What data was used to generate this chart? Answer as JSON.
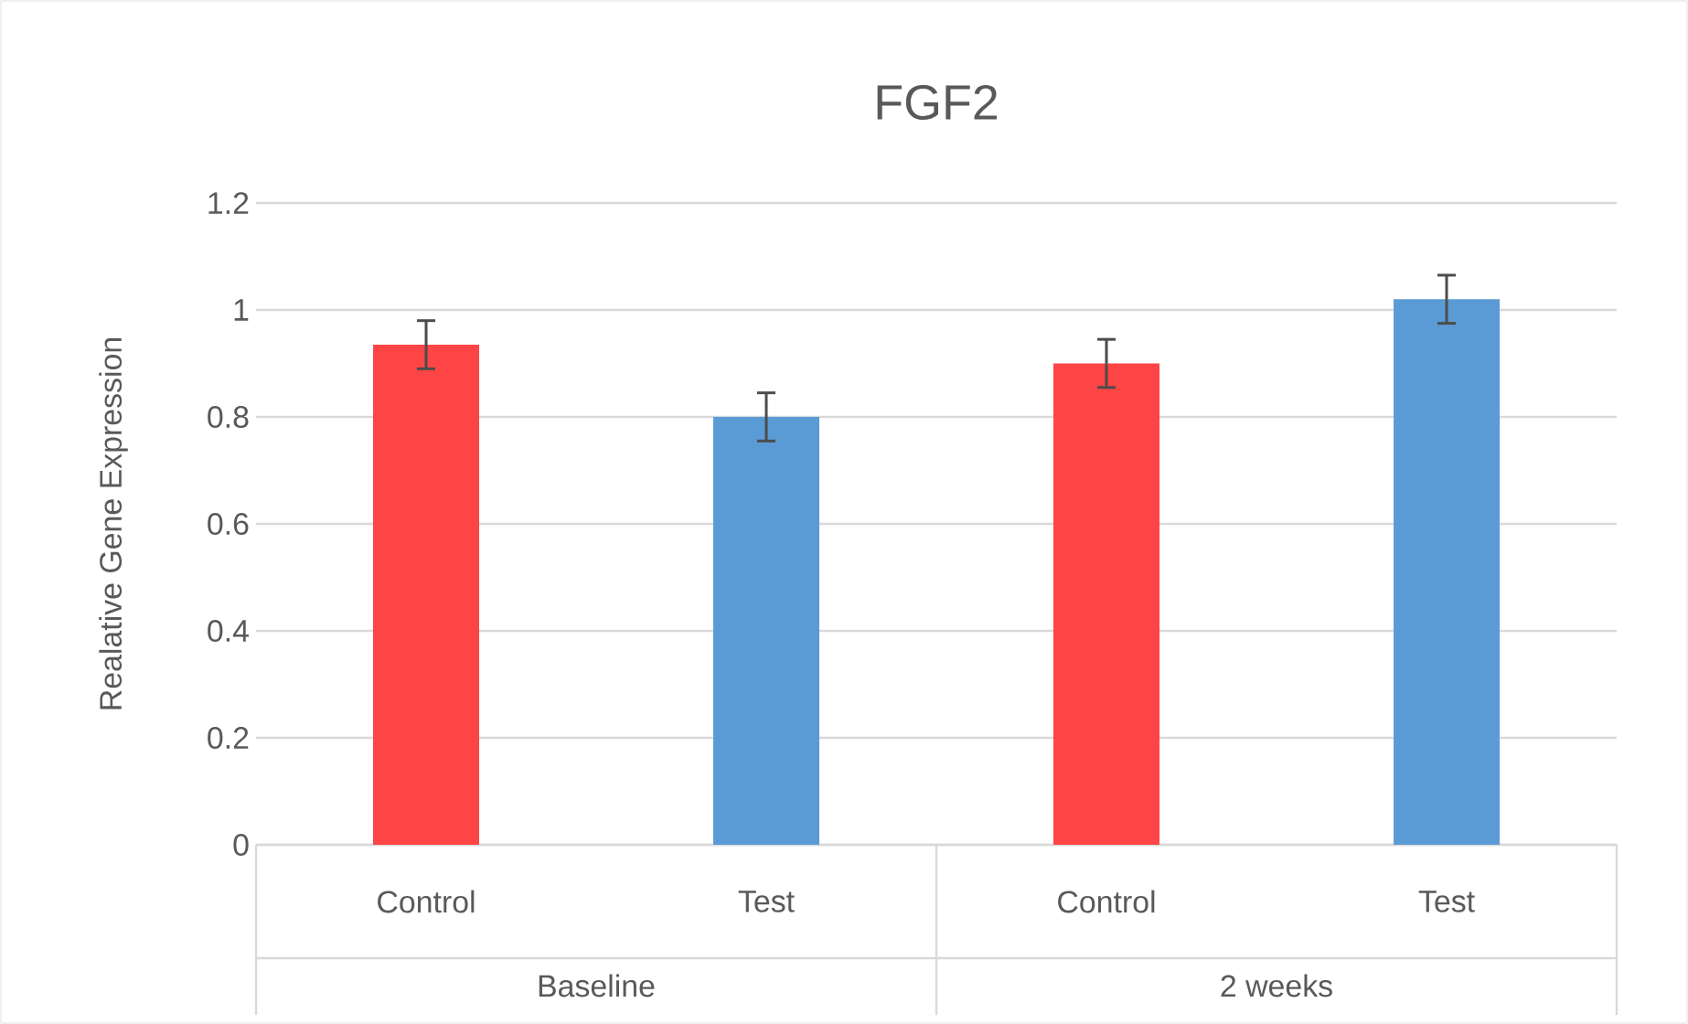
{
  "chart_data": {
    "type": "bar",
    "title": "FGF2",
    "ylabel": "Realative Gene Expression",
    "categories": [
      "Control",
      "Test",
      "Control",
      "Test"
    ],
    "values": [
      0.935,
      0.8,
      0.9,
      1.02
    ],
    "errors": [
      0.045,
      0.045,
      0.045,
      0.045
    ],
    "colors": [
      "#fe4545",
      "#5b9bd5",
      "#fe4545",
      "#5b9bd5"
    ],
    "annotations": [
      "Baseline",
      "2 weeks"
    ],
    "ylim": [
      0,
      1.2
    ],
    "yticks": [
      0,
      0.2,
      0.4,
      0.6,
      0.8,
      1,
      1.2
    ],
    "grid": "y"
  }
}
